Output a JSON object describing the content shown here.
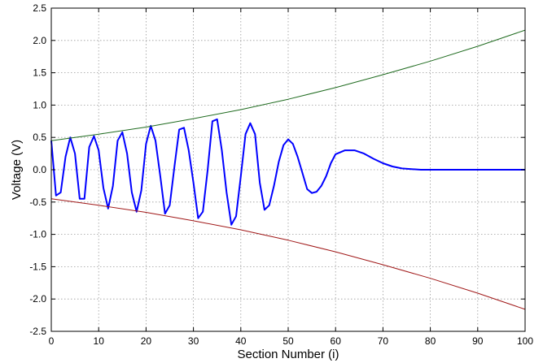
{
  "chart_data": {
    "type": "line",
    "title": "",
    "xlabel": "Section Number (i)",
    "ylabel": "Voltage (V)",
    "xlim": [
      0,
      100
    ],
    "ylim": [
      -2.5,
      2.5
    ],
    "x_ticks": [
      0,
      10,
      20,
      30,
      40,
      50,
      60,
      70,
      80,
      90,
      100
    ],
    "y_ticks": [
      -2.5,
      -2.0,
      -1.5,
      -1.0,
      -0.5,
      0.0,
      0.5,
      1.0,
      1.5,
      2.0,
      2.5
    ],
    "x_tick_labels": [
      "0",
      "10",
      "20",
      "30",
      "40",
      "50",
      "60",
      "70",
      "80",
      "90",
      "100"
    ],
    "y_tick_labels": [
      "-2.5",
      "-2.0",
      "-1.5",
      "-1.0",
      "-0.5",
      "0.0",
      "0.5",
      "1.0",
      "1.5",
      "2.0",
      "2.5"
    ],
    "grid": true,
    "series": [
      {
        "color": "#0000ff",
        "x": [
          0,
          1,
          2,
          3,
          4,
          5,
          6,
          7,
          8,
          9,
          10,
          11,
          12,
          13,
          14,
          15,
          16,
          17,
          18,
          19,
          20,
          21,
          22,
          23,
          24,
          25,
          26,
          27,
          28,
          29,
          30,
          31,
          32,
          33,
          34,
          35,
          36,
          37,
          38,
          39,
          40,
          41,
          42,
          43,
          44,
          45,
          46,
          47,
          48,
          49,
          50,
          51,
          52,
          53,
          54,
          55,
          56,
          57,
          58,
          59,
          60,
          62,
          64,
          66,
          68,
          70,
          72,
          74,
          76,
          78,
          80,
          82,
          84,
          86,
          88,
          90,
          92,
          94,
          96,
          98,
          100
        ],
        "y": [
          0.45,
          -0.4,
          -0.35,
          0.2,
          0.5,
          0.25,
          -0.45,
          -0.45,
          0.35,
          0.52,
          0.3,
          -0.28,
          -0.6,
          -0.25,
          0.45,
          0.58,
          0.25,
          -0.35,
          -0.65,
          -0.32,
          0.4,
          0.68,
          0.45,
          -0.1,
          -0.68,
          -0.55,
          0.05,
          0.62,
          0.65,
          0.3,
          -0.2,
          -0.75,
          -0.65,
          0.0,
          0.75,
          0.78,
          0.3,
          -0.35,
          -0.85,
          -0.72,
          -0.1,
          0.55,
          0.72,
          0.55,
          -0.2,
          -0.62,
          -0.55,
          -0.25,
          0.12,
          0.38,
          0.47,
          0.4,
          0.2,
          -0.05,
          -0.3,
          -0.36,
          -0.34,
          -0.25,
          -0.1,
          0.1,
          0.24,
          0.3,
          0.3,
          0.25,
          0.17,
          0.1,
          0.05,
          0.02,
          0.01,
          0.0,
          0.0,
          0.0,
          0.0,
          0.0,
          0.0,
          0.0,
          0.0,
          0.0,
          0.0,
          0.0,
          0.0
        ]
      },
      {
        "color": "#1f6b1f",
        "x": [
          0,
          10,
          20,
          30,
          40,
          50,
          60,
          70,
          80,
          90,
          100
        ],
        "y": [
          0.45,
          0.55,
          0.66,
          0.79,
          0.93,
          1.09,
          1.27,
          1.47,
          1.68,
          1.91,
          2.16
        ]
      },
      {
        "color": "#a01818",
        "x": [
          0,
          10,
          20,
          30,
          40,
          50,
          60,
          70,
          80,
          90,
          100
        ],
        "y": [
          -0.45,
          -0.55,
          -0.66,
          -0.79,
          -0.93,
          -1.09,
          -1.27,
          -1.47,
          -1.68,
          -1.91,
          -2.16
        ]
      }
    ]
  }
}
